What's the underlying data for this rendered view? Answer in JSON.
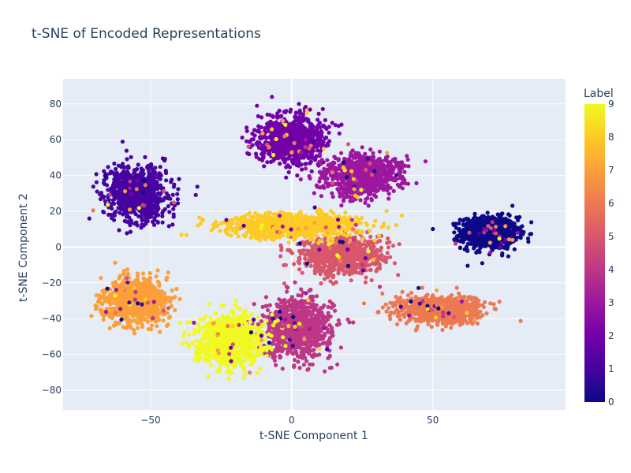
{
  "chart_data": {
    "type": "scatter",
    "title": "t-SNE of Encoded Representations",
    "xlabel": "t-SNE Component 1",
    "ylabel": "t-SNE Component 2",
    "xlim": [
      -81,
      97
    ],
    "ylim": [
      -91,
      94
    ],
    "x_ticks": [
      -50,
      0,
      50
    ],
    "y_ticks": [
      -80,
      -60,
      -40,
      -20,
      0,
      20,
      40,
      60,
      80
    ],
    "grid": true,
    "background": "#e5ecf6",
    "colorscale": "plasma",
    "colorbar": {
      "title": "Label",
      "range": [
        0,
        9
      ],
      "ticks": [
        0,
        1,
        2,
        3,
        4,
        5,
        6,
        7,
        8,
        9
      ]
    },
    "label_colors": [
      "#0d0887",
      "#46039f",
      "#7201a8",
      "#9c179e",
      "#bd3786",
      "#d8576b",
      "#ed7953",
      "#fb9f3a",
      "#fdca26",
      "#f0f921"
    ],
    "clusters": [
      {
        "label": 0,
        "center": [
          70,
          8
        ],
        "spread": [
          9,
          8
        ],
        "points": 900
      },
      {
        "label": 1,
        "center": [
          -55,
          30
        ],
        "spread": [
          10,
          14
        ],
        "points": 850
      },
      {
        "label": 2,
        "center": [
          0,
          60
        ],
        "spread": [
          11,
          12
        ],
        "points": 900
      },
      {
        "label": 3,
        "center": [
          25,
          40
        ],
        "spread": [
          12,
          10
        ],
        "points": 900
      },
      {
        "label": 4,
        "center": [
          2,
          -45
        ],
        "spread": [
          11,
          15
        ],
        "points": 850
      },
      {
        "label": 5,
        "center": [
          18,
          -5
        ],
        "spread": [
          13,
          10
        ],
        "points": 850
      },
      {
        "label": 6,
        "center": [
          52,
          -35
        ],
        "spread": [
          14,
          7
        ],
        "points": 850
      },
      {
        "label": 7,
        "center": [
          -55,
          -30
        ],
        "spread": [
          10,
          11
        ],
        "points": 850
      },
      {
        "label": 8,
        "center": [
          0,
          12
        ],
        "spread": [
          22,
          6
        ],
        "points": 950
      },
      {
        "label": 9,
        "center": [
          -22,
          -52
        ],
        "spread": [
          11,
          13
        ],
        "points": 850
      }
    ]
  }
}
